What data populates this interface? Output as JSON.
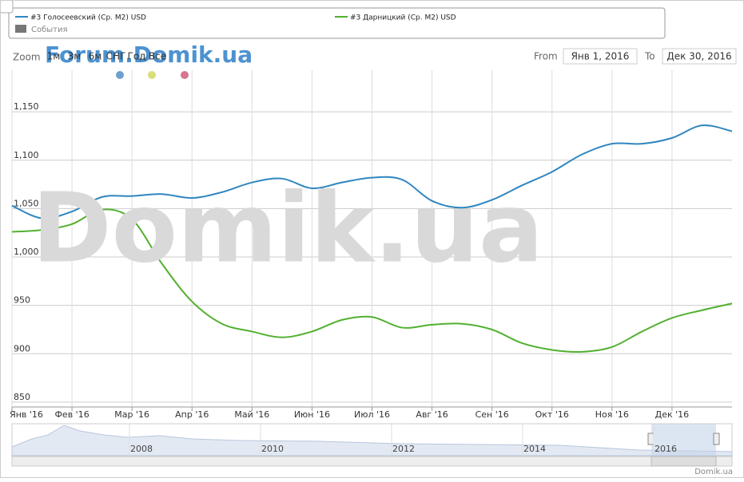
{
  "chart_data": {
    "type": "line",
    "categories": [
      "Янв '16",
      null,
      "Фев '16",
      null,
      "Мар '16",
      null,
      "Апр '16",
      null,
      "Май '16",
      null,
      "Июн '16",
      null,
      "Июл '16",
      null,
      "Авг '16",
      null,
      "Сен '16",
      null,
      "Окт '16",
      null,
      "Ноя '16",
      null,
      "Дек '16",
      null,
      null
    ],
    "series": [
      {
        "name": "#3 Голосеевский (Ср. М2) USD",
        "color": "#2f86c0",
        "values": [
          1053,
          1040,
          1047,
          1062,
          1063,
          1065,
          1061,
          1067,
          1077,
          1081,
          1071,
          1077,
          1082,
          1080,
          1058,
          1051,
          1059,
          1074,
          1088,
          1106,
          1117,
          1117,
          1123,
          1136,
          1130
        ]
      },
      {
        "name": "#3 Дарницкий (Ср. М2) USD",
        "color": "#52b030",
        "values": [
          1026,
          1028,
          1034,
          1049,
          1039,
          993,
          954,
          931,
          923,
          917,
          923,
          935,
          938,
          927,
          930,
          931,
          925,
          911,
          904,
          902,
          907,
          923,
          937,
          945,
          952
        ]
      }
    ],
    "ylim": [
      845,
      1193
    ],
    "yticks": [
      850,
      900,
      950,
      {
        "value": 1000,
        "label": "1,000"
      },
      {
        "value": 1050,
        "label": "1,050"
      },
      {
        "value": 1100,
        "label": "1,100"
      },
      {
        "value": 1150,
        "label": "1,150"
      }
    ],
    "grid": true
  },
  "ui": {
    "events": "События",
    "zoom": "Zoom",
    "zoom_buttons": [
      "1м",
      "3м",
      "6м",
      "СНГ",
      "Год",
      "Все"
    ],
    "from": "From",
    "from_date": "Янв 1, 2016",
    "to": "To",
    "to_date": "Дек 30, 2016",
    "watermark": "Domik.ua",
    "forum": "Forum.Domik.ua",
    "navigator_years": [
      "2008",
      "2010",
      "2012",
      "2014",
      "2016"
    ],
    "credit": "Domik.ua"
  }
}
